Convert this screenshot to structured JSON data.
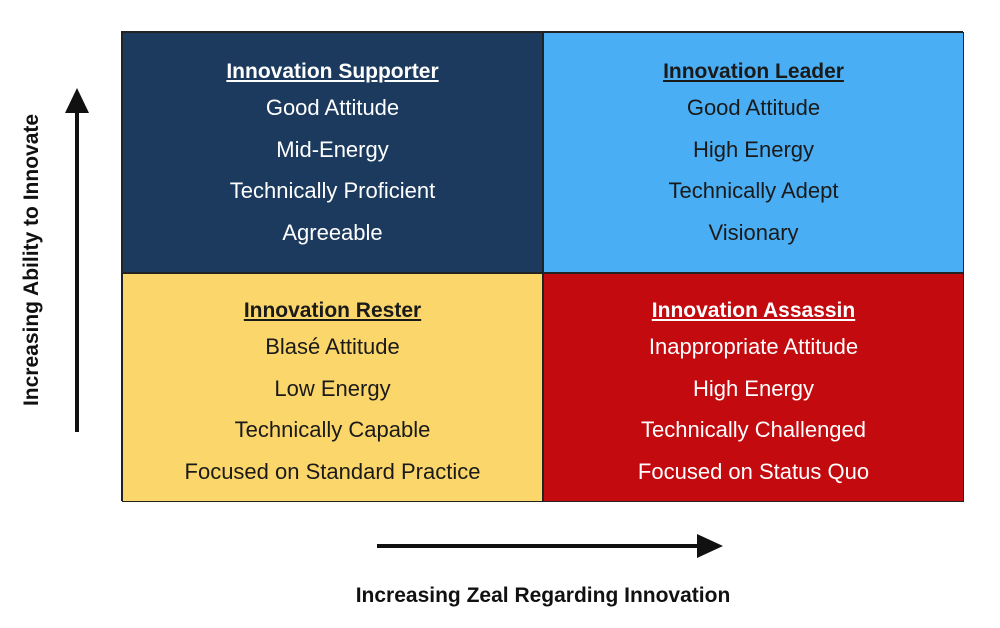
{
  "quadrants": [
    {
      "title": "Innovation Supporter",
      "items": [
        "Good Attitude",
        "Mid-Energy",
        "Technically Proficient",
        "Agreeable"
      ]
    },
    {
      "title": "Innovation Leader",
      "items": [
        "Good Attitude",
        "High Energy",
        "Technically Adept",
        "Visionary"
      ]
    },
    {
      "title": "Innovation Rester",
      "items": [
        "Blasé Attitude",
        "Low Energy",
        "Technically Capable",
        "Focused on Standard Practice"
      ]
    },
    {
      "title": "Innovation Assassin",
      "items": [
        "Inappropriate Attitude",
        "High Energy",
        "Technically Challenged",
        "Focused on Status Quo"
      ]
    }
  ],
  "y_axis_label": "Increasing Ability to Innovate",
  "x_axis_label": "Increasing Zeal Regarding Innovation"
}
